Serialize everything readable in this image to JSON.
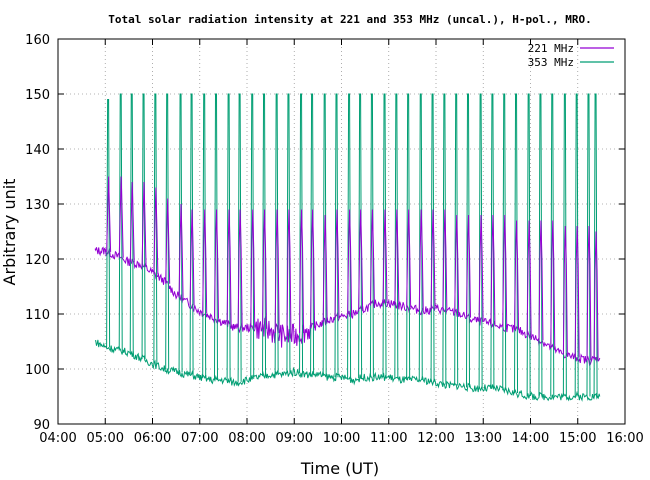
{
  "chart_data": {
    "type": "line",
    "title": "Total solar radiation intensity at 221 and 353 MHz (uncal.), H-pol., MRO.",
    "xlabel": "Time (UT)",
    "ylabel": "Arbitrary unit",
    "xlim": [
      "04:00",
      "16:00"
    ],
    "ylim": [
      90,
      160
    ],
    "x_ticks": [
      "04:00",
      "05:00",
      "06:00",
      "07:00",
      "08:00",
      "09:00",
      "10:00",
      "11:00",
      "12:00",
      "13:00",
      "14:00",
      "15:00",
      "16:00"
    ],
    "y_ticks": [
      90,
      100,
      110,
      120,
      130,
      140,
      150,
      160
    ],
    "grid": true,
    "legend_position": "top-right",
    "series": [
      {
        "name": "221 MHz",
        "color": "#9400d3",
        "x": [
          "04:47",
          "05:00",
          "05:15",
          "05:30",
          "05:45",
          "06:00",
          "06:15",
          "06:30",
          "06:45",
          "07:00",
          "07:15",
          "07:30",
          "07:45",
          "08:00",
          "08:15",
          "08:30",
          "08:45",
          "09:00",
          "09:15",
          "09:30",
          "09:45",
          "10:00",
          "10:15",
          "10:30",
          "10:45",
          "11:00",
          "11:15",
          "11:30",
          "11:45",
          "12:00",
          "12:15",
          "12:30",
          "12:45",
          "13:00",
          "13:15",
          "13:30",
          "13:45",
          "14:00",
          "14:15",
          "14:30",
          "14:45",
          "15:00",
          "15:15",
          "15:28"
        ],
        "values": [
          121.5,
          121.5,
          120.5,
          119.5,
          119,
          117.5,
          116,
          113.5,
          112,
          110.5,
          109.5,
          108.5,
          107.5,
          107.5,
          107.5,
          107,
          106,
          106,
          107,
          108,
          109,
          109.5,
          110,
          111,
          112,
          112,
          111.5,
          111,
          110.5,
          111,
          110.5,
          110,
          109,
          108.5,
          108,
          107.5,
          107,
          106,
          105,
          103.5,
          102.5,
          102,
          101.5,
          102
        ]
      },
      {
        "name": "353 MHz",
        "color": "#009e73",
        "x": [
          "04:47",
          "05:00",
          "05:15",
          "05:30",
          "05:45",
          "06:00",
          "06:15",
          "06:30",
          "06:45",
          "07:00",
          "07:15",
          "07:30",
          "07:45",
          "08:00",
          "08:15",
          "08:30",
          "08:45",
          "09:00",
          "09:15",
          "09:30",
          "09:45",
          "10:00",
          "10:15",
          "10:30",
          "10:45",
          "11:00",
          "11:15",
          "11:30",
          "11:45",
          "12:00",
          "12:15",
          "12:30",
          "12:45",
          "13:00",
          "13:15",
          "13:30",
          "13:45",
          "14:00",
          "14:15",
          "14:30",
          "14:45",
          "15:00",
          "15:15",
          "15:28"
        ],
        "values": [
          105,
          104,
          103.5,
          103,
          102,
          101,
          100,
          99.5,
          99,
          98.5,
          98,
          98,
          97.5,
          98,
          98.5,
          99,
          99,
          99.5,
          99,
          99,
          98.5,
          98.5,
          98,
          98.5,
          98.5,
          98.5,
          98,
          98,
          98,
          97.5,
          97,
          97,
          96.5,
          96.5,
          96.5,
          96,
          95.5,
          95,
          95,
          95,
          95,
          95,
          95,
          95
        ]
      }
    ],
    "calibration_spikes": {
      "note_221": "periodic spikes to ~125-135 then back",
      "times": [
        "05:03",
        "05:19",
        "05:33",
        "05:48",
        "06:03",
        "06:18",
        "06:35",
        "06:49",
        "07:05",
        "07:20",
        "07:36",
        "07:50",
        "08:06",
        "08:21",
        "08:37",
        "08:52",
        "09:08",
        "09:22",
        "09:38",
        "09:53",
        "10:09",
        "10:23",
        "10:38",
        "10:54",
        "11:09",
        "11:24",
        "11:40",
        "11:55",
        "12:10",
        "12:25",
        "12:40",
        "12:56",
        "13:11",
        "13:26",
        "13:41",
        "13:57",
        "14:12",
        "14:27",
        "14:43",
        "14:58",
        "15:13",
        "15:22"
      ],
      "peak_221": [
        135,
        135,
        134,
        134,
        133,
        131,
        130,
        129,
        129,
        129,
        129,
        129,
        129,
        129,
        129,
        129,
        129,
        129,
        128,
        129,
        129,
        129,
        129,
        129,
        129,
        129,
        129,
        129,
        129,
        128,
        128,
        128,
        128,
        128,
        127,
        127,
        127,
        127,
        126,
        126,
        126,
        125
      ],
      "peak_353": [
        149,
        150,
        150,
        150,
        150,
        150,
        150,
        150,
        150,
        150,
        150,
        150,
        150,
        150,
        150,
        150,
        150,
        150,
        150,
        150,
        150,
        150,
        150,
        150,
        150,
        150,
        150,
        150,
        150,
        150,
        150,
        150,
        150,
        150,
        150,
        150,
        150,
        150,
        150,
        150,
        150,
        150
      ]
    }
  }
}
